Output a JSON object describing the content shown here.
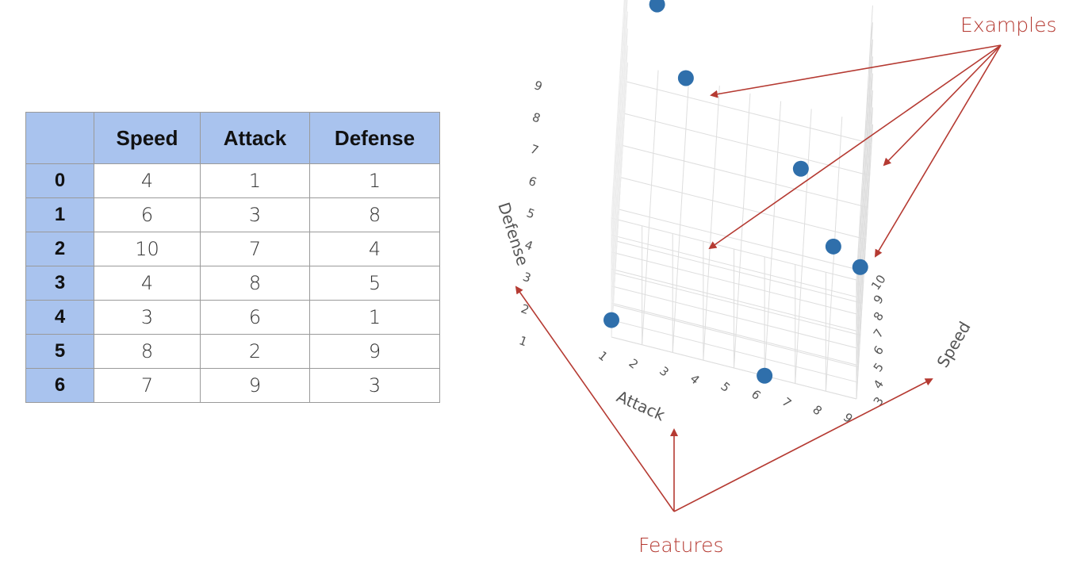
{
  "table": {
    "headers": [
      "",
      "Speed",
      "Attack",
      "Defense"
    ],
    "rows": [
      {
        "index": "0",
        "speed": "4",
        "attack": "1",
        "defense": "1"
      },
      {
        "index": "1",
        "speed": "6",
        "attack": "3",
        "defense": "8"
      },
      {
        "index": "2",
        "speed": "10",
        "attack": "7",
        "defense": "4"
      },
      {
        "index": "3",
        "speed": "4",
        "attack": "8",
        "defense": "5"
      },
      {
        "index": "4",
        "speed": "3",
        "attack": "6",
        "defense": "1"
      },
      {
        "index": "5",
        "speed": "8",
        "attack": "2",
        "defense": "9"
      },
      {
        "index": "6",
        "speed": "7",
        "attack": "9",
        "defense": "3"
      }
    ]
  },
  "annotations": {
    "examples_label": "Examples",
    "features_label": "Features",
    "arrow_color": "#b53a32"
  },
  "chart_data": {
    "type": "scatter",
    "projection": "3d",
    "marker_color": "#2f6fab",
    "axes": {
      "x": {
        "label": "Attack",
        "ticks": [
          "1",
          "2",
          "3",
          "4",
          "5",
          "6",
          "7",
          "8",
          "9"
        ]
      },
      "y": {
        "label": "Defense",
        "ticks": [
          "1",
          "2",
          "3",
          "4",
          "5",
          "6",
          "7",
          "8",
          "9"
        ]
      },
      "z": {
        "label": "Speed",
        "ticks": [
          "3",
          "4",
          "5",
          "6",
          "7",
          "8",
          "9",
          "10"
        ]
      }
    },
    "grid": true,
    "points": [
      {
        "speed": 4,
        "attack": 1,
        "defense": 1
      },
      {
        "speed": 6,
        "attack": 3,
        "defense": 8
      },
      {
        "speed": 10,
        "attack": 7,
        "defense": 4
      },
      {
        "speed": 4,
        "attack": 8,
        "defense": 5
      },
      {
        "speed": 3,
        "attack": 6,
        "defense": 1
      },
      {
        "speed": 8,
        "attack": 2,
        "defense": 9
      },
      {
        "speed": 7,
        "attack": 9,
        "defense": 3
      }
    ]
  }
}
